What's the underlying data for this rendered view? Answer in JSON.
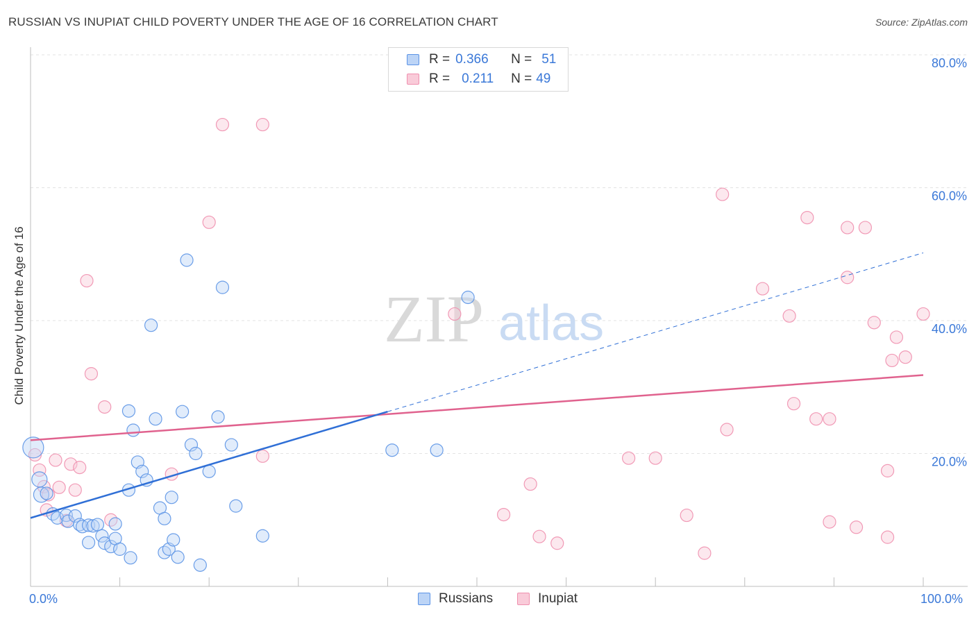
{
  "header": {
    "title": "RUSSIAN VS INUPIAT CHILD POVERTY UNDER THE AGE OF 16 CORRELATION CHART",
    "source": "Source: ZipAtlas.com"
  },
  "legend": {
    "rows": [
      {
        "r_label": "R =",
        "r_value": "0.366",
        "n_label": "N =",
        "n_value": "51"
      },
      {
        "r_label": "R =",
        "r_value": "0.211",
        "n_label": "N =",
        "n_value": "49"
      }
    ]
  },
  "bottom_legend": {
    "series1": "Russians",
    "series2": "Inupiat"
  },
  "watermark": {
    "zip": "ZIP",
    "atlas": "atlas"
  },
  "x_axis_labels": {
    "min": "0.0%",
    "max": "100.0%"
  },
  "colors": {
    "russians": "#5b93e6",
    "inupiat": "#ef8fae",
    "russians_line": "#2f6fd6",
    "inupiat_line": "#e0628e",
    "tick_text": "#3a78d8"
  },
  "chart_data": {
    "type": "scatter",
    "title": "RUSSIAN VS INUPIAT CHILD POVERTY UNDER THE AGE OF 16 CORRELATION CHART",
    "xlabel": "",
    "ylabel": "Child Poverty Under the Age of 16",
    "xlim": [
      0,
      100
    ],
    "ylim": [
      0,
      80
    ],
    "y_ticks": [
      20,
      40,
      60,
      80
    ],
    "y_tick_labels": [
      "20.0%",
      "40.0%",
      "60.0%",
      "80.0%"
    ],
    "grid": true,
    "series": [
      {
        "name": "Russians",
        "R": 0.366,
        "N": 51,
        "trend": {
          "x": [
            0,
            40
          ],
          "y": [
            10.3,
            26.3
          ],
          "dashed_to": [
            100,
            50.2
          ]
        },
        "points": [
          [
            0.3,
            20.9
          ],
          [
            1.0,
            16.1
          ],
          [
            1.2,
            13.8
          ],
          [
            1.8,
            14.0
          ],
          [
            2.5,
            10.9
          ],
          [
            3.0,
            10.3
          ],
          [
            4.0,
            10.7
          ],
          [
            4.2,
            9.8
          ],
          [
            5.0,
            10.6
          ],
          [
            5.5,
            9.3
          ],
          [
            5.8,
            9.0
          ],
          [
            6.5,
            9.2
          ],
          [
            6.5,
            6.6
          ],
          [
            7.0,
            9.1
          ],
          [
            7.5,
            9.3
          ],
          [
            8.0,
            7.6
          ],
          [
            8.3,
            6.5
          ],
          [
            9.0,
            6.0
          ],
          [
            9.5,
            9.4
          ],
          [
            9.5,
            7.2
          ],
          [
            10.0,
            5.6
          ],
          [
            11.0,
            26.4
          ],
          [
            11.0,
            14.5
          ],
          [
            11.2,
            4.3
          ],
          [
            11.5,
            23.5
          ],
          [
            12.0,
            18.7
          ],
          [
            12.5,
            17.3
          ],
          [
            13.0,
            16.0
          ],
          [
            13.5,
            39.3
          ],
          [
            14.0,
            25.2
          ],
          [
            14.5,
            11.8
          ],
          [
            15.0,
            10.2
          ],
          [
            15.0,
            5.1
          ],
          [
            15.5,
            5.6
          ],
          [
            15.8,
            13.4
          ],
          [
            16.0,
            7.0
          ],
          [
            16.5,
            4.4
          ],
          [
            17.0,
            26.3
          ],
          [
            17.5,
            49.1
          ],
          [
            18.0,
            21.3
          ],
          [
            18.5,
            20.0
          ],
          [
            19.0,
            3.2
          ],
          [
            20.0,
            17.3
          ],
          [
            21.0,
            25.5
          ],
          [
            21.5,
            45.0
          ],
          [
            22.5,
            21.3
          ],
          [
            23.0,
            12.1
          ],
          [
            26.0,
            7.6
          ],
          [
            40.5,
            20.5
          ],
          [
            45.5,
            20.5
          ],
          [
            49.0,
            43.5
          ]
        ]
      },
      {
        "name": "Inupiat",
        "R": 0.211,
        "N": 49,
        "trend": {
          "x": [
            0,
            100
          ],
          "y": [
            22.0,
            31.8
          ]
        },
        "points": [
          [
            0.5,
            19.8
          ],
          [
            1.0,
            17.5
          ],
          [
            1.5,
            15.0
          ],
          [
            1.8,
            11.5
          ],
          [
            2.0,
            13.8
          ],
          [
            2.8,
            19.0
          ],
          [
            3.2,
            14.9
          ],
          [
            4.0,
            9.9
          ],
          [
            4.5,
            18.4
          ],
          [
            5.0,
            14.5
          ],
          [
            5.5,
            17.9
          ],
          [
            6.3,
            46.0
          ],
          [
            6.8,
            32.0
          ],
          [
            8.3,
            27.0
          ],
          [
            9.0,
            10.0
          ],
          [
            15.8,
            16.9
          ],
          [
            20.0,
            54.8
          ],
          [
            21.5,
            69.5
          ],
          [
            26.0,
            69.5
          ],
          [
            26.0,
            19.6
          ],
          [
            47.5,
            41.0
          ],
          [
            53.0,
            10.8
          ],
          [
            56.0,
            15.4
          ],
          [
            57.0,
            7.5
          ],
          [
            59.0,
            6.5
          ],
          [
            67.0,
            19.3
          ],
          [
            70.0,
            19.3
          ],
          [
            73.5,
            10.7
          ],
          [
            75.5,
            5.0
          ],
          [
            77.5,
            59.0
          ],
          [
            78.0,
            23.6
          ],
          [
            82.0,
            44.8
          ],
          [
            85.0,
            40.7
          ],
          [
            85.5,
            27.5
          ],
          [
            87.0,
            55.5
          ],
          [
            88.0,
            25.2
          ],
          [
            89.5,
            9.7
          ],
          [
            89.5,
            25.2
          ],
          [
            91.5,
            54.0
          ],
          [
            91.5,
            46.5
          ],
          [
            92.5,
            8.9
          ],
          [
            93.5,
            54.0
          ],
          [
            94.5,
            39.7
          ],
          [
            96.0,
            17.4
          ],
          [
            96.0,
            7.4
          ],
          [
            96.5,
            34.0
          ],
          [
            97.0,
            37.5
          ],
          [
            98.0,
            34.5
          ],
          [
            100.0,
            41.0
          ]
        ]
      }
    ]
  }
}
